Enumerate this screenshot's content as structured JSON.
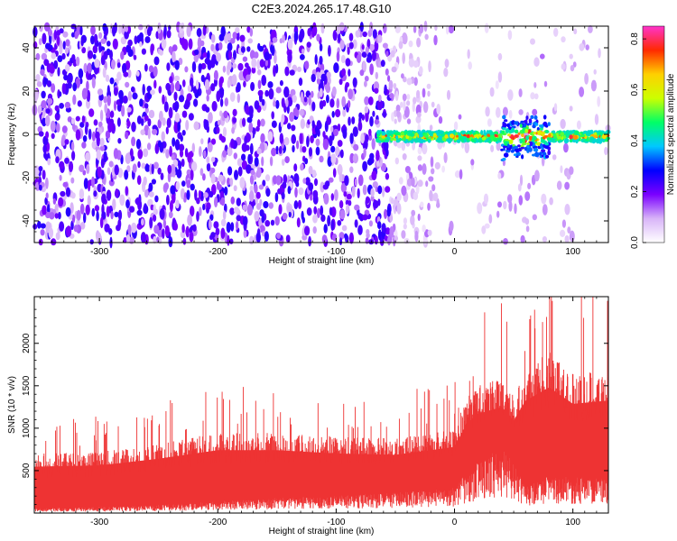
{
  "title": "C2E3.2024.265.17.48.G10",
  "chart_data": [
    {
      "type": "heatmap",
      "xlabel": "Height of straight line (km)",
      "ylabel": "Frequency (Hz)",
      "xlim": [
        -355,
        130
      ],
      "ylim": [
        -50,
        50
      ],
      "xticks": [
        -300,
        -200,
        -100,
        0,
        100
      ],
      "xtick_labels": [
        "-300",
        "-200",
        "-100",
        "0",
        "100"
      ],
      "yticks": [
        -40,
        -20,
        0,
        20,
        40
      ],
      "ytick_labels": [
        "-40",
        "-20",
        "0",
        "20",
        "40"
      ],
      "colorbar": {
        "label": "Normalized spectral amplitude",
        "range": [
          0,
          0.85
        ],
        "ticks": [
          0,
          0.2,
          0.4,
          0.6,
          0.8
        ],
        "tick_labels": [
          "0.0",
          "0.2",
          "0.4",
          "0.6",
          "0.8"
        ],
        "colormap": [
          "#ffffff",
          "#d8b4f8",
          "#7a00ff",
          "#0000ff",
          "#00c8ff",
          "#00ff66",
          "#ccff00",
          "#ffd000",
          "#ff2a00",
          "#ff33cc"
        ]
      },
      "signal_band": {
        "x_range": [
          -65,
          130
        ],
        "center_frequency": 0,
        "peak_amplitude": 0.8,
        "broadening_region": [
          40,
          80
        ]
      },
      "noise_region": {
        "x_range": [
          -355,
          -55
        ],
        "typical_amplitude": 0.15
      }
    },
    {
      "type": "area",
      "xlabel": "Height of straight line (km)",
      "ylabel": "SNR (10 * v/v)",
      "xlim": [
        -355,
        130
      ],
      "ylim": [
        0,
        2550
      ],
      "xticks": [
        -300,
        -200,
        -100,
        0,
        100
      ],
      "xtick_labels": [
        "-300",
        "-200",
        "-100",
        "0",
        "100"
      ],
      "yticks": [
        500,
        1000,
        1500,
        2000
      ],
      "ytick_labels": [
        "500",
        "1000",
        "1500",
        "2000"
      ],
      "color": "#ee3333",
      "envelope": {
        "x": [
          -355,
          -300,
          -250,
          -200,
          -150,
          -100,
          -50,
          -20,
          0,
          10,
          20,
          40,
          50,
          60,
          80,
          100,
          130
        ],
        "upper": [
          700,
          720,
          820,
          950,
          950,
          900,
          880,
          950,
          1000,
          1350,
          1500,
          1600,
          1400,
          1700,
          1900,
          1650,
          1700
        ],
        "lower": [
          50,
          60,
          80,
          120,
          150,
          170,
          200,
          230,
          250,
          400,
          500,
          650,
          500,
          250,
          380,
          350,
          350
        ]
      }
    }
  ]
}
